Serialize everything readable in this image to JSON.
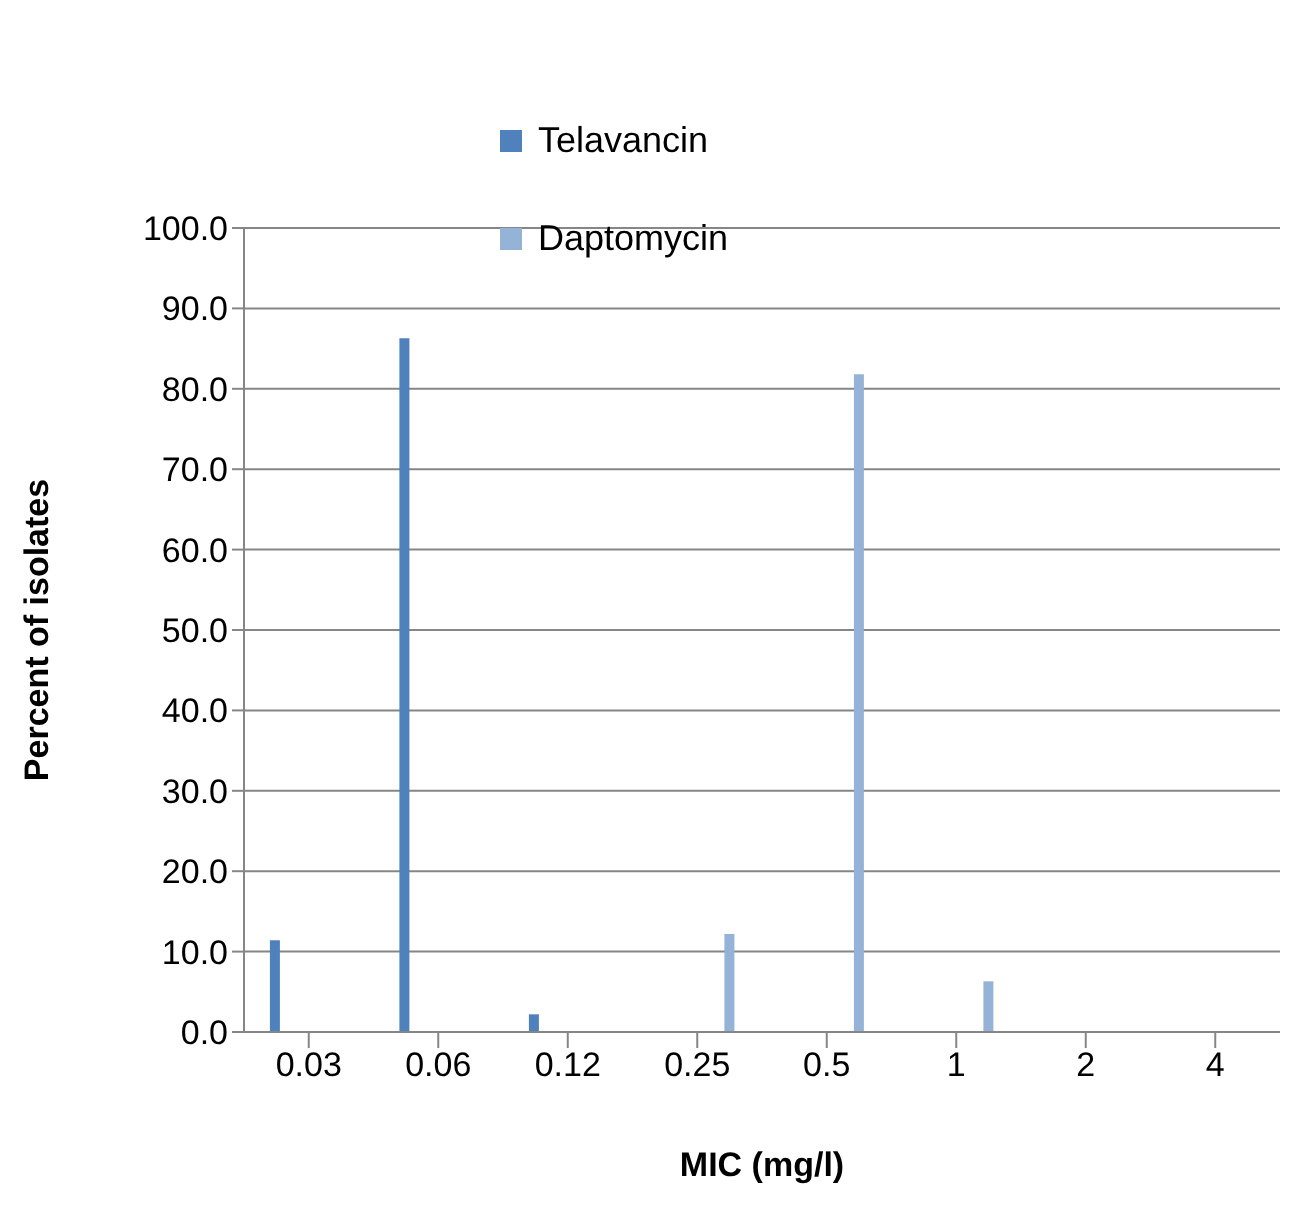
{
  "chart_data": {
    "type": "bar",
    "xlabel": "MIC (mg/l)",
    "ylabel": "Percent of isolates",
    "categories": [
      "0.03",
      "0.06",
      "0.12",
      "0.25",
      "0.5",
      "1",
      "2",
      "4"
    ],
    "series": [
      {
        "name": "Telavancin",
        "color": "#4f81bd",
        "values": [
          11.4,
          86.3,
          2.2,
          0,
          0,
          0,
          0,
          0
        ]
      },
      {
        "name": "Daptomycin",
        "color": "#95b3d7",
        "values": [
          0,
          0,
          0,
          12.2,
          81.8,
          6.3,
          0,
          0
        ]
      }
    ],
    "ylim": [
      0,
      100
    ],
    "yticks": [
      {
        "value": 0,
        "label": "0.0"
      },
      {
        "value": 10,
        "label": "10.0"
      },
      {
        "value": 20,
        "label": "20.0"
      },
      {
        "value": 30,
        "label": "30.0"
      },
      {
        "value": 40,
        "label": "40.0"
      },
      {
        "value": 50,
        "label": "50.0"
      },
      {
        "value": 60,
        "label": "60.0"
      },
      {
        "value": 70,
        "label": "70.0"
      },
      {
        "value": 80,
        "label": "80.0"
      },
      {
        "value": 90,
        "label": "90.0"
      },
      {
        "value": 100,
        "label": "100.0"
      }
    ],
    "grid": "y",
    "legend": "top"
  }
}
